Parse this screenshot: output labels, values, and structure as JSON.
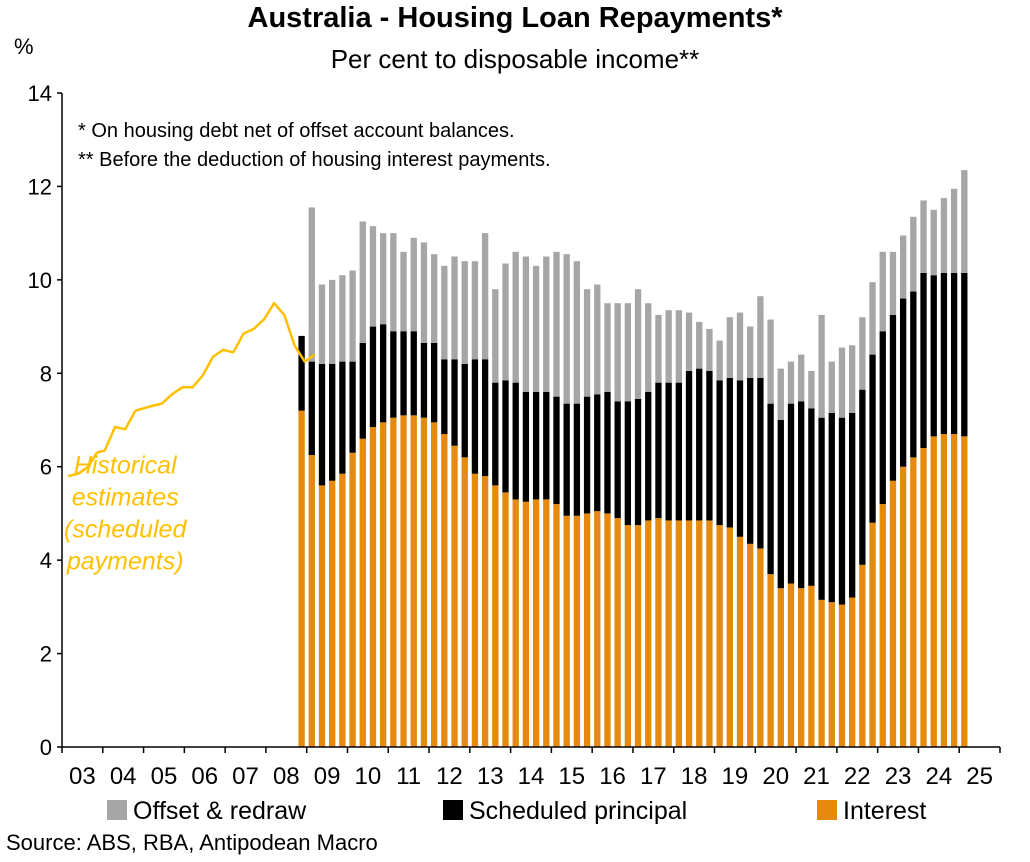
{
  "chart_data": {
    "type": "bar",
    "title": "Australia - Housing Loan Repayments*",
    "subtitle": "Per cent to disposable income**",
    "ylabel": "%",
    "ylim": [
      0,
      14
    ],
    "yticks": [
      0,
      2,
      4,
      6,
      8,
      10,
      12,
      14
    ],
    "xlim": [
      2003,
      2026
    ],
    "xticks": [
      "03",
      "04",
      "05",
      "06",
      "07",
      "08",
      "09",
      "10",
      "11",
      "12",
      "13",
      "14",
      "15",
      "16",
      "17",
      "18",
      "19",
      "20",
      "21",
      "22",
      "23",
      "24",
      "25"
    ],
    "notes": [
      "* On housing debt net of offset account balances.",
      "** Before the deduction of housing interest payments."
    ],
    "stacked": true,
    "legend_position": "bottom",
    "source": "Source: ABS, RBA, Antipodean Macro",
    "bar_x": [
      2008.875,
      2009.125,
      2009.375,
      2009.625,
      2009.875,
      2010.125,
      2010.375,
      2010.625,
      2010.875,
      2011.125,
      2011.375,
      2011.625,
      2011.875,
      2012.125,
      2012.375,
      2012.625,
      2012.875,
      2013.125,
      2013.375,
      2013.625,
      2013.875,
      2014.125,
      2014.375,
      2014.625,
      2014.875,
      2015.125,
      2015.375,
      2015.625,
      2015.875,
      2016.125,
      2016.375,
      2016.625,
      2016.875,
      2017.125,
      2017.375,
      2017.625,
      2017.875,
      2018.125,
      2018.375,
      2018.625,
      2018.875,
      2019.125,
      2019.375,
      2019.625,
      2019.875,
      2020.125,
      2020.375,
      2020.625,
      2020.875,
      2021.125,
      2021.375,
      2021.625,
      2021.875,
      2022.125,
      2022.375,
      2022.625,
      2022.875,
      2023.125,
      2023.375,
      2023.625,
      2023.875,
      2024.125,
      2024.375,
      2024.625,
      2024.875,
      2025.125
    ],
    "series": [
      {
        "name": "Interest",
        "color": "#e58a0e",
        "values": [
          7.2,
          6.25,
          5.6,
          5.7,
          5.85,
          6.3,
          6.6,
          6.85,
          6.95,
          7.05,
          7.1,
          7.1,
          7.05,
          6.95,
          6.7,
          6.45,
          6.2,
          5.85,
          5.8,
          5.6,
          5.45,
          5.3,
          5.25,
          5.3,
          5.3,
          5.2,
          4.95,
          4.95,
          5.0,
          5.05,
          5.0,
          4.9,
          4.75,
          4.75,
          4.85,
          4.9,
          4.85,
          4.85,
          4.85,
          4.85,
          4.85,
          4.75,
          4.7,
          4.5,
          4.35,
          4.25,
          3.7,
          3.4,
          3.5,
          3.4,
          3.45,
          3.15,
          3.1,
          3.05,
          3.2,
          3.9,
          4.8,
          5.2,
          5.7,
          6.0,
          6.2,
          6.4,
          6.65,
          6.7,
          6.7,
          6.65
        ]
      },
      {
        "name": "Scheduled principal",
        "color": "#000000",
        "values": [
          1.6,
          2.0,
          2.6,
          2.5,
          2.4,
          1.95,
          2.05,
          2.15,
          2.1,
          1.85,
          1.8,
          1.8,
          1.6,
          1.7,
          1.6,
          1.85,
          2.0,
          2.45,
          2.5,
          2.2,
          2.4,
          2.5,
          2.35,
          2.3,
          2.3,
          2.3,
          2.4,
          2.4,
          2.5,
          2.5,
          2.6,
          2.5,
          2.65,
          2.7,
          2.75,
          2.9,
          2.95,
          2.95,
          3.2,
          3.25,
          3.2,
          3.1,
          3.2,
          3.35,
          3.55,
          3.65,
          3.65,
          3.6,
          3.85,
          4.0,
          3.8,
          3.9,
          4.05,
          4.0,
          3.95,
          3.75,
          3.6,
          3.7,
          3.55,
          3.6,
          3.55,
          3.75,
          3.45,
          3.45,
          3.45,
          3.5
        ]
      },
      {
        "name": "Offset & redraw",
        "color": "#a6a6a6",
        "values": [
          0,
          3.3,
          1.7,
          1.8,
          1.85,
          1.95,
          2.6,
          2.15,
          1.95,
          2.1,
          1.7,
          2.0,
          2.15,
          1.9,
          2.0,
          2.2,
          2.2,
          2.1,
          2.7,
          2.0,
          2.5,
          2.8,
          2.9,
          2.7,
          2.9,
          3.1,
          3.2,
          3.05,
          2.3,
          2.35,
          1.9,
          2.1,
          2.1,
          2.35,
          1.9,
          1.45,
          1.55,
          1.55,
          1.25,
          1.0,
          0.9,
          0.85,
          1.3,
          1.45,
          1.1,
          1.75,
          1.8,
          1.1,
          0.9,
          1.0,
          0.8,
          2.2,
          1.1,
          1.5,
          1.45,
          1.55,
          1.55,
          1.7,
          1.35,
          1.35,
          1.6,
          1.55,
          1.4,
          1.6,
          1.8,
          2.2
        ]
      }
    ],
    "line": {
      "name": "Historical estimates (scheduled payments)",
      "label_lines": [
        "Historical",
        "estimates",
        "(scheduled",
        "payments)"
      ],
      "color": "#ffc000",
      "x": [
        2003.15,
        2003.4,
        2003.65,
        2003.85,
        2004.05,
        2004.3,
        2004.55,
        2004.8,
        2005.0,
        2005.2,
        2005.45,
        2005.7,
        2005.95,
        2006.2,
        2006.45,
        2006.7,
        2006.95,
        2007.2,
        2007.45,
        2007.7,
        2007.95,
        2008.2,
        2008.45,
        2008.7,
        2008.95,
        2009.2
      ],
      "y": [
        5.8,
        5.85,
        6.0,
        6.3,
        6.35,
        6.85,
        6.8,
        7.2,
        7.25,
        7.3,
        7.35,
        7.55,
        7.7,
        7.7,
        7.95,
        8.35,
        8.5,
        8.45,
        8.85,
        8.95,
        9.15,
        9.5,
        9.25,
        8.6,
        8.25,
        8.4
      ]
    }
  }
}
